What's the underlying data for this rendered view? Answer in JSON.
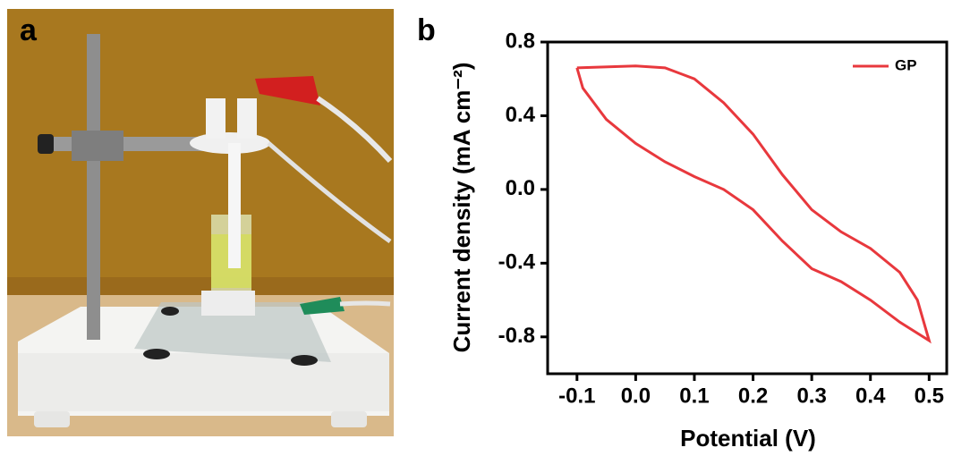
{
  "panel_labels": [
    "a",
    "b"
  ],
  "chart_data": {
    "type": "line",
    "x_label": "Potential (V)",
    "y_label": "Current density (mA cm⁻²)",
    "x": [
      -0.1,
      0.0,
      0.05,
      0.1,
      0.15,
      0.2,
      0.25,
      0.3,
      0.35,
      0.4,
      0.45,
      0.48,
      0.5,
      0.45,
      0.4,
      0.35,
      0.3,
      0.25,
      0.2,
      0.15,
      0.1,
      0.05,
      0.0,
      -0.05,
      -0.09,
      -0.1
    ],
    "series": [
      {
        "name": "GP",
        "color": "#e8383d",
        "values": [
          0.66,
          0.67,
          0.66,
          0.6,
          0.47,
          0.3,
          0.08,
          -0.11,
          -0.23,
          -0.32,
          -0.45,
          -0.6,
          -0.82,
          -0.72,
          -0.6,
          -0.5,
          -0.43,
          -0.28,
          -0.11,
          0.0,
          0.07,
          0.15,
          0.25,
          0.38,
          0.55,
          0.66
        ]
      }
    ],
    "xlim": [
      -0.15,
      0.53
    ],
    "ylim": [
      -1.0,
      0.8
    ],
    "xticks": [
      -0.1,
      {
        "value": 0,
        "label": "0.0"
      },
      0.1,
      0.2,
      0.3,
      0.4,
      0.5
    ],
    "yticks": [
      -0.8,
      -0.4,
      {
        "value": 0,
        "label": "0.0"
      },
      0.4,
      0.8
    ],
    "legend": "upper right"
  }
}
